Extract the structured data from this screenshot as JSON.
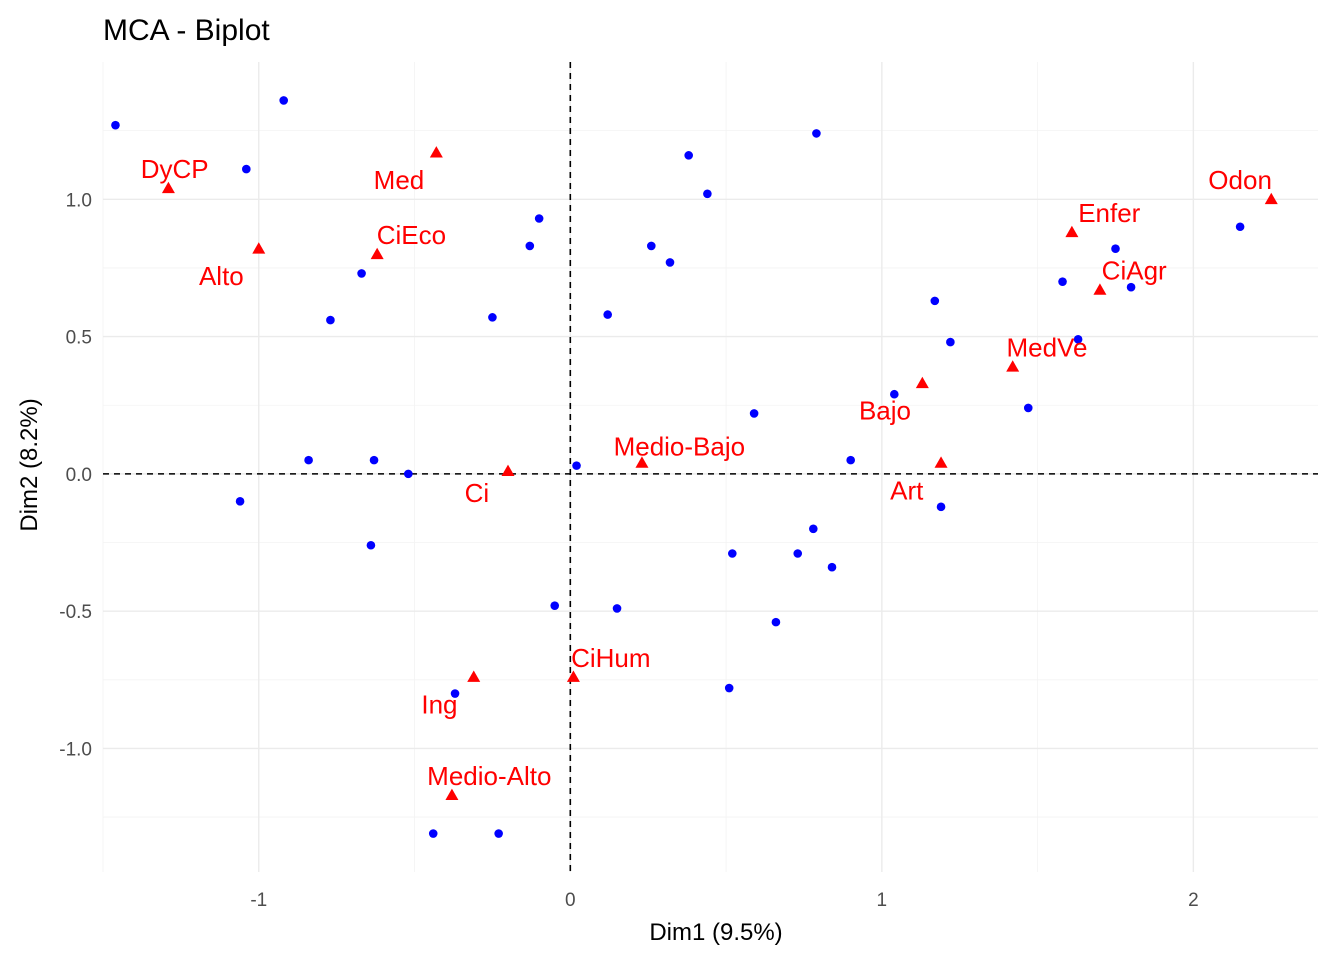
{
  "chart_data": {
    "type": "scatter",
    "title": "MCA - Biplot",
    "xlabel": "Dim1 (9.5%)",
    "ylabel": "Dim2 (8.2%)",
    "xlim": [
      -1.5,
      2.4
    ],
    "ylim": [
      -1.45,
      1.5
    ],
    "x_ticks": [
      -1,
      0,
      1,
      2
    ],
    "x_tick_labels": [
      "-1",
      "0",
      "1",
      "2"
    ],
    "y_ticks": [
      -1.0,
      -0.5,
      0.0,
      0.5,
      1.0
    ],
    "y_tick_labels": [
      "-1.0",
      "-0.5",
      "0.0",
      "0.5",
      "1.0"
    ],
    "grid": true,
    "reference_lines": {
      "x": 0,
      "y": 0,
      "style": "dashed"
    },
    "individuals": {
      "color": "#0000ff",
      "marker": "circle",
      "points": [
        {
          "x": -1.46,
          "y": 1.27
        },
        {
          "x": -0.92,
          "y": 1.36
        },
        {
          "x": -1.04,
          "y": 1.11
        },
        {
          "x": -0.77,
          "y": 0.56
        },
        {
          "x": -0.67,
          "y": 0.73
        },
        {
          "x": -0.25,
          "y": 0.57
        },
        {
          "x": -0.13,
          "y": 0.83
        },
        {
          "x": -0.1,
          "y": 0.93
        },
        {
          "x": 0.38,
          "y": 1.16
        },
        {
          "x": 0.44,
          "y": 1.02
        },
        {
          "x": 0.79,
          "y": 1.24
        },
        {
          "x": 0.26,
          "y": 0.83
        },
        {
          "x": 0.32,
          "y": 0.77
        },
        {
          "x": 0.12,
          "y": 0.58
        },
        {
          "x": -0.84,
          "y": 0.05
        },
        {
          "x": -0.63,
          "y": 0.05
        },
        {
          "x": -0.52,
          "y": 0.0
        },
        {
          "x": 0.02,
          "y": 0.03
        },
        {
          "x": 0.59,
          "y": 0.22
        },
        {
          "x": -1.06,
          "y": -0.1
        },
        {
          "x": -0.64,
          "y": -0.26
        },
        {
          "x": 0.52,
          "y": -0.29
        },
        {
          "x": 0.73,
          "y": -0.29
        },
        {
          "x": 0.78,
          "y": -0.2
        },
        {
          "x": 0.84,
          "y": -0.34
        },
        {
          "x": -0.05,
          "y": -0.48
        },
        {
          "x": 0.15,
          "y": -0.49
        },
        {
          "x": 0.66,
          "y": -0.54
        },
        {
          "x": -0.37,
          "y": -0.8
        },
        {
          "x": 0.51,
          "y": -0.78
        },
        {
          "x": -0.44,
          "y": -1.31
        },
        {
          "x": -0.23,
          "y": -1.31
        },
        {
          "x": 0.9,
          "y": 0.05
        },
        {
          "x": 1.04,
          "y": 0.29
        },
        {
          "x": 1.17,
          "y": 0.63
        },
        {
          "x": 1.22,
          "y": 0.48
        },
        {
          "x": 1.19,
          "y": -0.12
        },
        {
          "x": 1.47,
          "y": 0.24
        },
        {
          "x": 1.58,
          "y": 0.7
        },
        {
          "x": 1.63,
          "y": 0.49
        },
        {
          "x": 1.75,
          "y": 0.82
        },
        {
          "x": 1.8,
          "y": 0.68
        },
        {
          "x": 2.15,
          "y": 0.9
        }
      ]
    },
    "categories": {
      "color": "#ff0000",
      "marker": "triangle",
      "points": [
        {
          "label": "DyCP",
          "x": -1.29,
          "y": 1.04,
          "label_dx": 0.02,
          "label_dy": 0.07
        },
        {
          "label": "Med",
          "x": -0.43,
          "y": 1.17,
          "label_dx": -0.12,
          "label_dy": -0.1
        },
        {
          "label": "CiEco",
          "x": -0.62,
          "y": 0.8,
          "label_dx": 0.11,
          "label_dy": 0.07
        },
        {
          "label": "Alto",
          "x": -1.0,
          "y": 0.82,
          "label_dx": -0.12,
          "label_dy": -0.1
        },
        {
          "label": "Ci",
          "x": -0.2,
          "y": 0.01,
          "label_dx": -0.1,
          "label_dy": -0.08
        },
        {
          "label": "Medio-Bajo",
          "x": 0.23,
          "y": 0.04,
          "label_dx": 0.12,
          "label_dy": 0.06
        },
        {
          "label": "Bajo",
          "x": 1.13,
          "y": 0.33,
          "label_dx": -0.12,
          "label_dy": -0.1
        },
        {
          "label": "Art",
          "x": 1.19,
          "y": 0.04,
          "label_dx": -0.11,
          "label_dy": -0.1
        },
        {
          "label": "MedVe",
          "x": 1.42,
          "y": 0.39,
          "label_dx": 0.11,
          "label_dy": 0.07
        },
        {
          "label": "Enfer",
          "x": 1.61,
          "y": 0.88,
          "label_dx": 0.12,
          "label_dy": 0.07
        },
        {
          "label": "CiAgr",
          "x": 1.7,
          "y": 0.67,
          "label_dx": 0.11,
          "label_dy": 0.07
        },
        {
          "label": "Odon",
          "x": 2.25,
          "y": 1.0,
          "label_dx": -0.1,
          "label_dy": 0.07
        },
        {
          "label": "CiHum",
          "x": 0.01,
          "y": -0.74,
          "label_dx": 0.12,
          "label_dy": 0.07
        },
        {
          "label": "Ing",
          "x": -0.31,
          "y": -0.74,
          "label_dx": -0.11,
          "label_dy": -0.1
        },
        {
          "label": "Medio-Alto",
          "x": -0.38,
          "y": -1.17,
          "label_dx": 0.12,
          "label_dy": 0.07
        }
      ]
    }
  }
}
